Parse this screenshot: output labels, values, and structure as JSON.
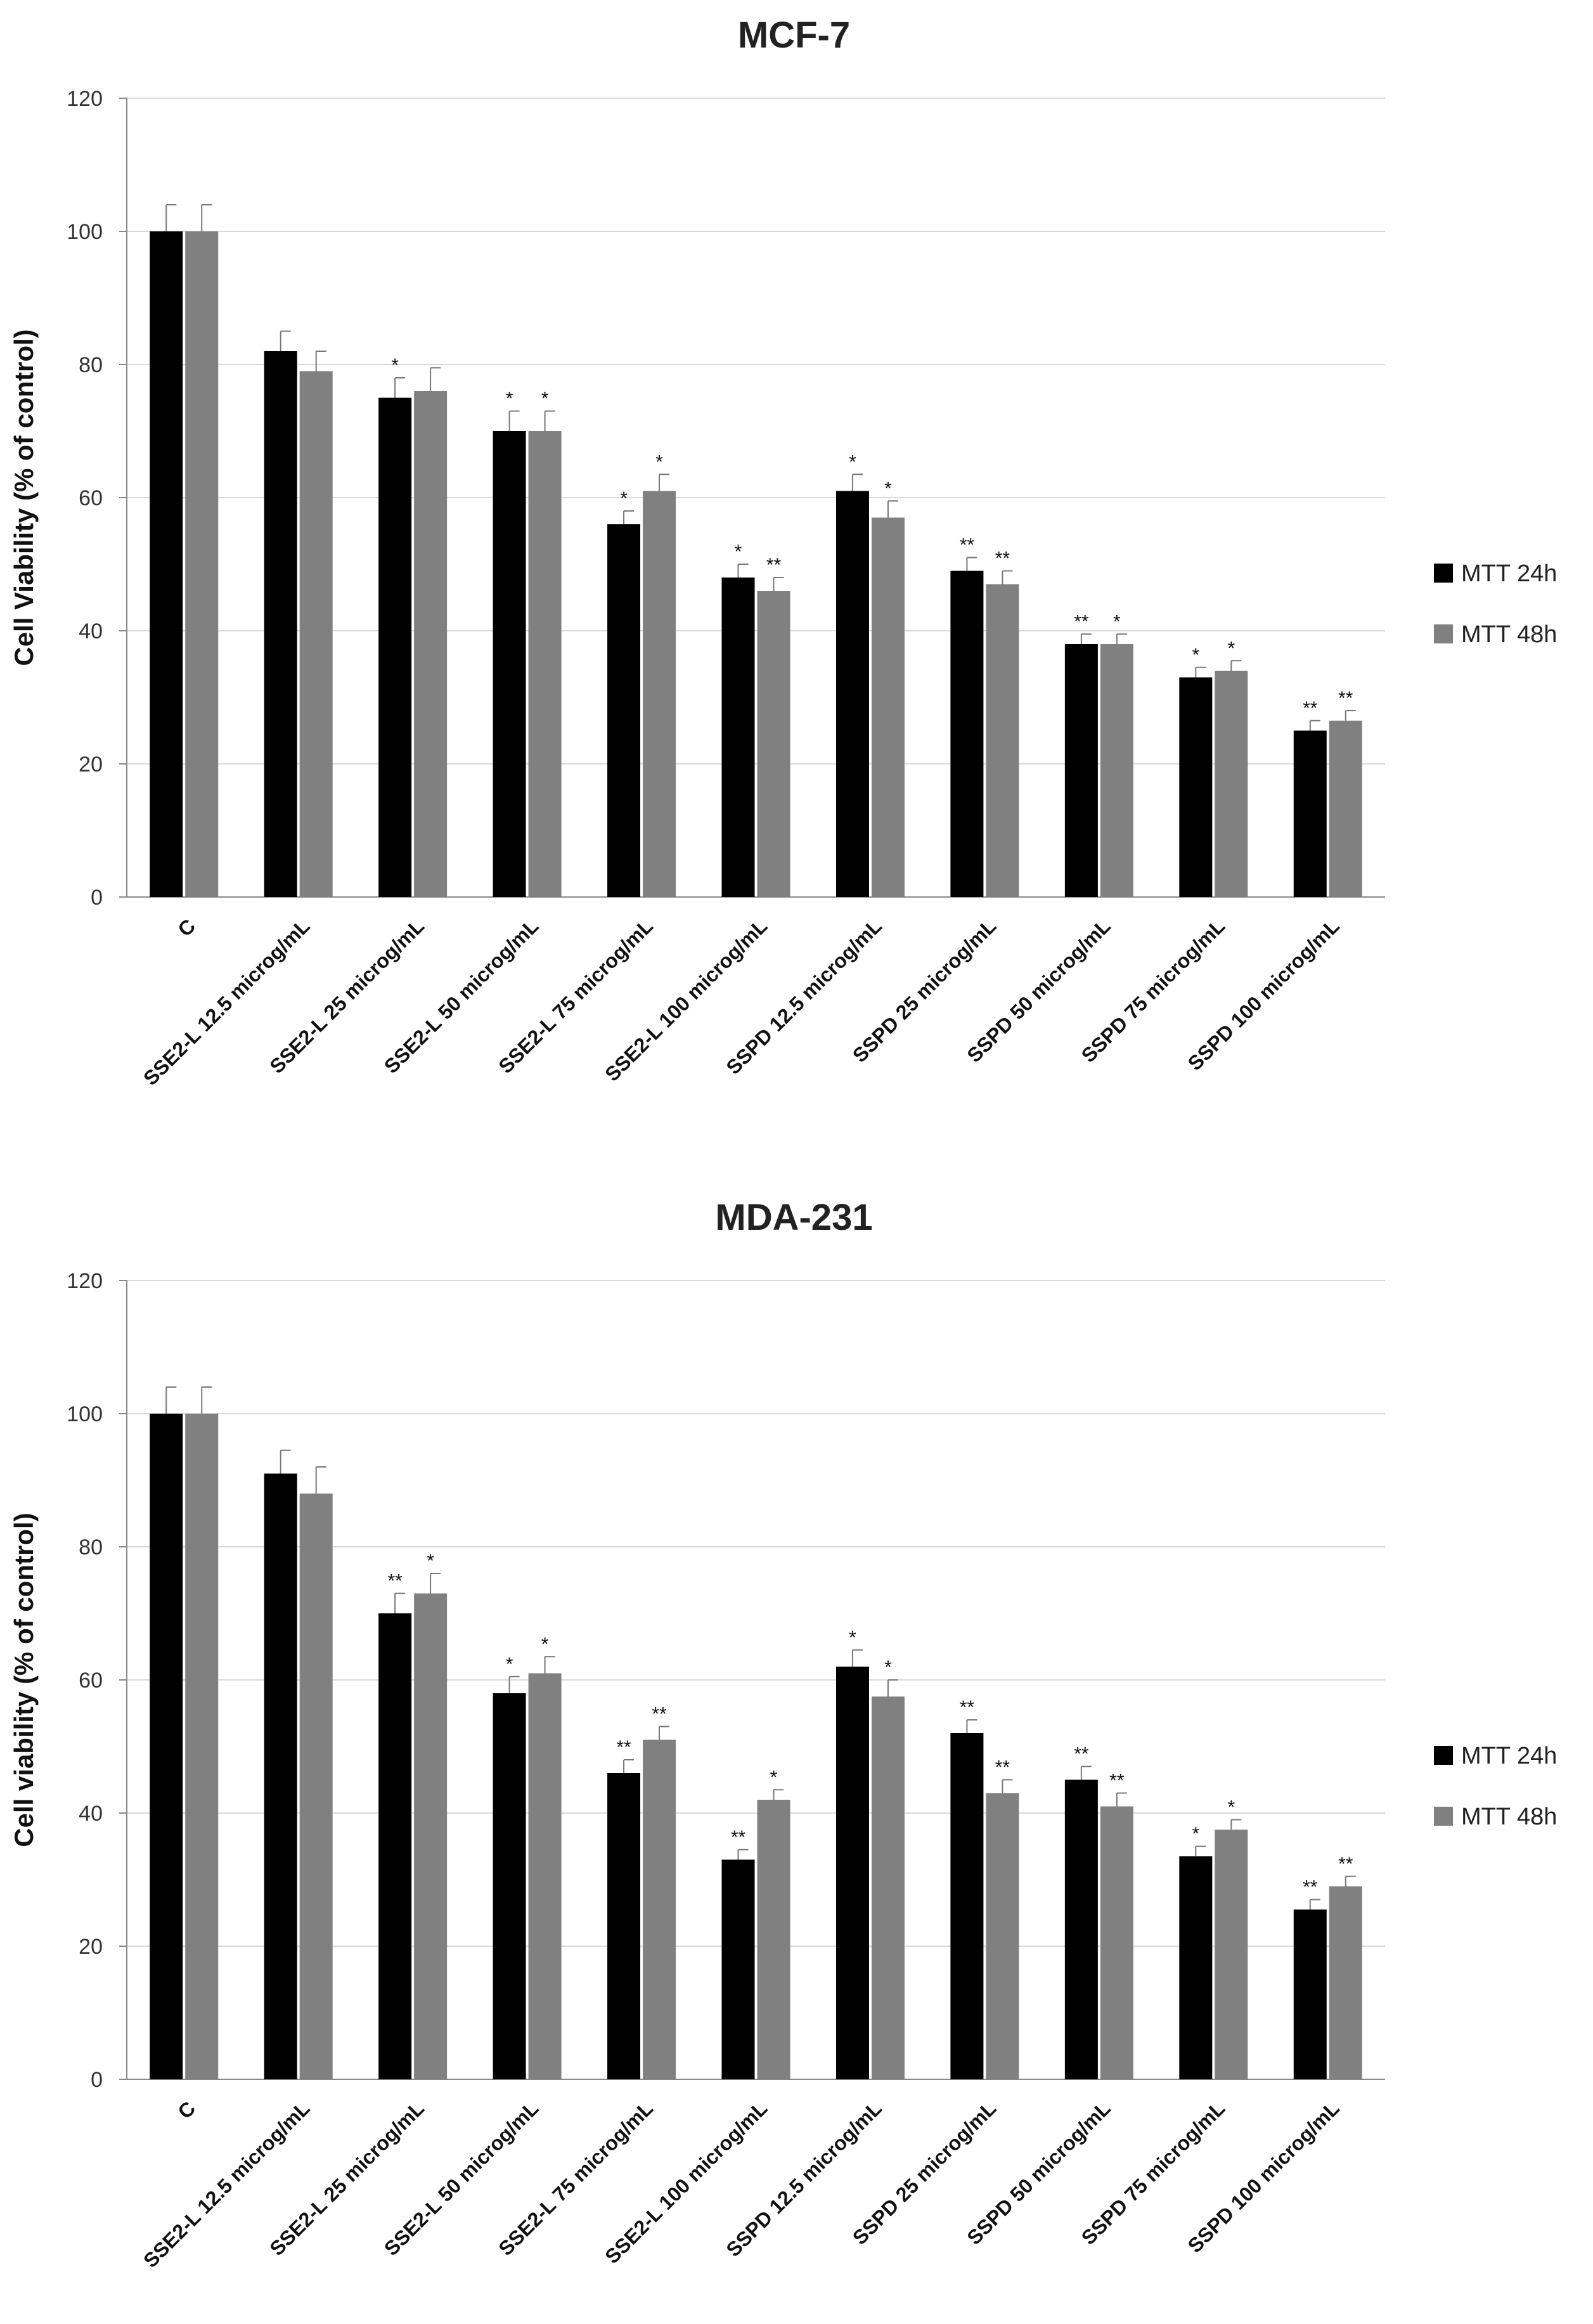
{
  "chart_data": [
    {
      "type": "bar",
      "title": "MCF-7",
      "xlabel": "",
      "ylabel": "Cell Viability (% of control)",
      "ylim": [
        0,
        120
      ],
      "yticks": [
        0,
        20,
        40,
        60,
        80,
        100,
        120
      ],
      "grid": true,
      "legend_position": "right",
      "categories": [
        "C",
        "SSE2-L 12.5 microg/mL",
        "SSE2-L 25 microg/mL",
        "SSE2-L 50 microg/mL",
        "SSE2-L 75 microg/mL",
        "SSE2-L 100 microg/mL",
        "SSPD 12.5 microg/mL",
        "SSPD 25 microg/mL",
        "SSPD 50 microg/mL",
        "SSPD 75 microg/mL",
        "SSPD 100 microg/mL"
      ],
      "series": [
        {
          "name": "MTT 24h",
          "color": "#000000",
          "values": [
            100,
            82,
            75,
            70,
            56,
            48,
            61,
            49,
            38,
            33,
            25
          ],
          "errors": [
            4,
            3,
            3,
            3,
            2,
            2,
            2.5,
            2,
            1.5,
            1.5,
            1.5
          ],
          "significance": [
            "",
            "",
            "*",
            "*",
            "*",
            "*",
            "*",
            "**",
            "**",
            "*",
            "**"
          ]
        },
        {
          "name": "MTT 48h",
          "color": "#808080",
          "values": [
            100,
            79,
            76,
            70,
            61,
            46,
            57,
            47,
            38,
            34,
            26.5
          ],
          "errors": [
            4,
            3,
            3.5,
            3,
            2.5,
            2,
            2.5,
            2,
            1.5,
            1.5,
            1.5
          ],
          "significance": [
            "",
            "",
            "",
            "*",
            "*",
            "**",
            "*",
            "**",
            "*",
            "*",
            "**"
          ]
        }
      ]
    },
    {
      "type": "bar",
      "title": "MDA-231",
      "xlabel": "",
      "ylabel": "Cell viability (% of control)",
      "ylim": [
        0,
        120
      ],
      "yticks": [
        0,
        20,
        40,
        60,
        80,
        100,
        120
      ],
      "grid": true,
      "legend_position": "right",
      "categories": [
        "C",
        "SSE2-L 12.5 microg/mL",
        "SSE2-L 25 microg/mL",
        "SSE2-L 50 microg/mL",
        "SSE2-L 75 microg/mL",
        "SSE2-L 100 microg/mL",
        "SSPD 12.5 microg/mL",
        "SSPD 25 microg/mL",
        "SSPD 50 microg/mL",
        "SSPD 75 microg/mL",
        "SSPD 100 microg/mL"
      ],
      "series": [
        {
          "name": "MTT 24h",
          "color": "#000000",
          "values": [
            100,
            91,
            70,
            58,
            46,
            33,
            62,
            52,
            45,
            33.5,
            25.5
          ],
          "errors": [
            4,
            3.5,
            3,
            2.5,
            2,
            1.5,
            2.5,
            2,
            2,
            1.5,
            1.5
          ],
          "significance": [
            "",
            "",
            "**",
            "*",
            "**",
            "**",
            "*",
            "**",
            "**",
            "*",
            "**"
          ]
        },
        {
          "name": "MTT 48h",
          "color": "#808080",
          "values": [
            100,
            88,
            73,
            61,
            51,
            42,
            57.5,
            43,
            41,
            37.5,
            29
          ],
          "errors": [
            4,
            4,
            3,
            2.5,
            2,
            1.5,
            2.5,
            2,
            2,
            1.5,
            1.5
          ],
          "significance": [
            "",
            "",
            "*",
            "*",
            "**",
            "*",
            "*",
            "**",
            "**",
            "*",
            "**"
          ]
        }
      ]
    }
  ]
}
